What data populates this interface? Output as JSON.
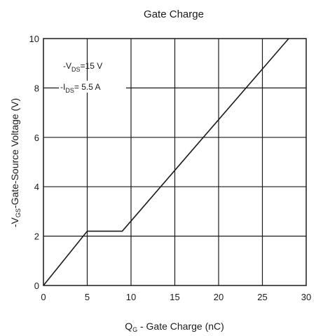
{
  "chart_data": {
    "type": "line",
    "title": "Gate Charge",
    "xlabel": {
      "symbol": "Q",
      "sub": "G",
      "rest": " - Gate Charge (nC)"
    },
    "ylabel": {
      "prefix": "-V",
      "sub": "GS",
      "rest": "-Gate-Source Voltage (V)"
    },
    "xlim": [
      0,
      30
    ],
    "ylim": [
      0,
      10
    ],
    "xticks": [
      0,
      5,
      10,
      15,
      20,
      25,
      30
    ],
    "yticks": [
      0,
      2,
      4,
      6,
      8,
      10
    ],
    "grid": true,
    "series": [
      {
        "x": [
          0,
          5,
          9,
          28
        ],
        "y": [
          0,
          2.2,
          2.2,
          10
        ]
      }
    ],
    "annotations": [
      {
        "prefix": "-V",
        "sub": "DS",
        "rest": "=15 V"
      },
      {
        "prefix": "-I",
        "sub": "DS",
        "rest": "= 5.5 A"
      }
    ],
    "colors": {
      "line": "#1a1a1a",
      "grid": "#1a1a1a",
      "background": "#ffffff"
    }
  }
}
